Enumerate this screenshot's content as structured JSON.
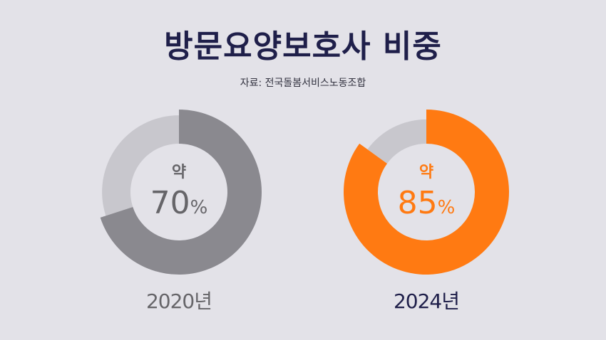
{
  "title": "방문요양보호사 비중",
  "source": "자료: 전국돌봄서비스노동조합",
  "colors": {
    "background": "#e3e2e8",
    "title": "#1f1f4a",
    "remainder": "#c8c7cd",
    "gray_fill": "#8a898f",
    "gray_text": "#666569",
    "orange_fill": "#ff7a12",
    "orange_text": "#ff7a12",
    "label_2024": "#1f1f4a"
  },
  "chart_data": [
    {
      "type": "pie",
      "label": "2020년",
      "prefix": "약",
      "value": 70,
      "unit": "%",
      "total": 100
    },
    {
      "type": "pie",
      "label": "2024년",
      "prefix": "약",
      "value": 85,
      "unit": "%",
      "total": 100
    }
  ]
}
